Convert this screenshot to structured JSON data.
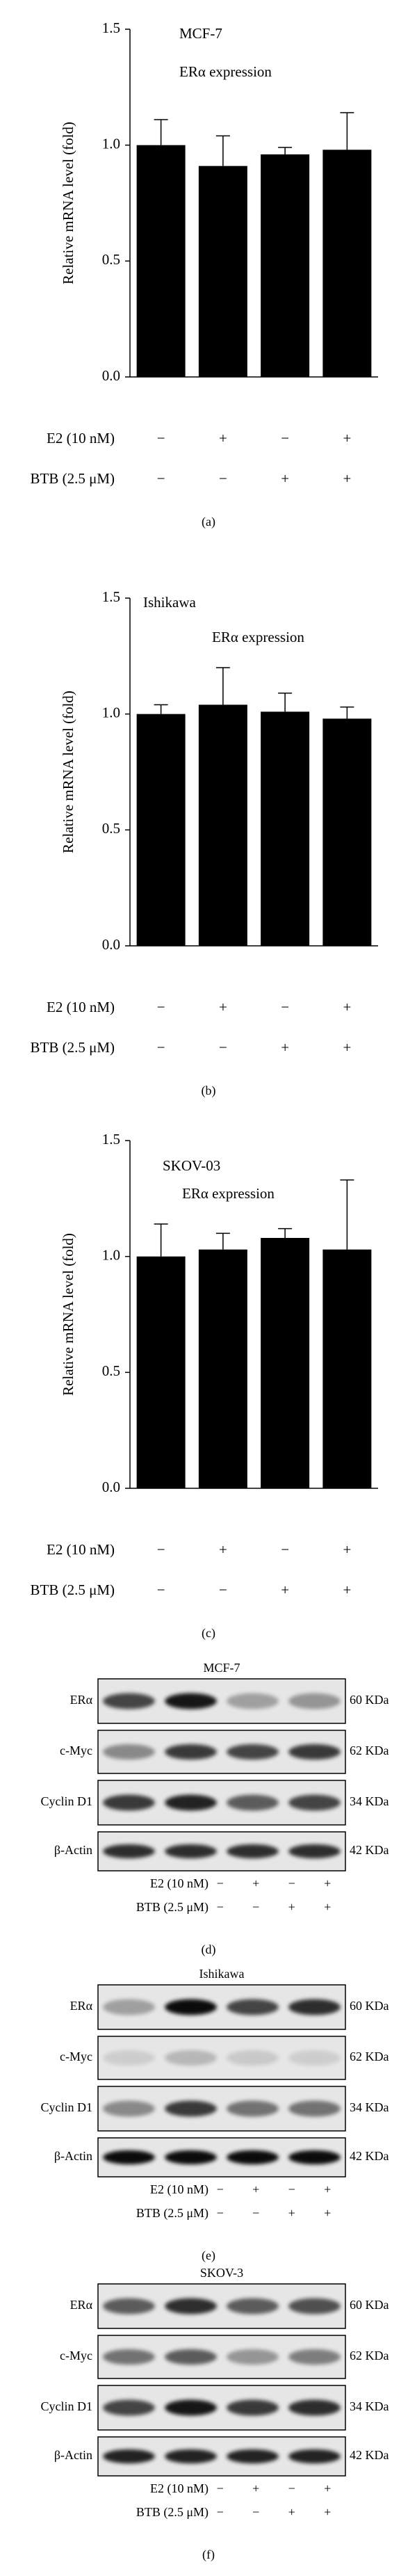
{
  "chart_data": [
    {
      "type": "bar",
      "title": "MCF-7",
      "subtitle": "ERα expression",
      "y_label": "Relative mRNA level (fold)",
      "series": [
        {
          "color": "#000000",
          "values": [
            1.0,
            0.91,
            0.96,
            0.98
          ],
          "errors": [
            0.11,
            0.13,
            0.03,
            0.16
          ]
        }
      ],
      "ylim": [
        0,
        1.5
      ],
      "yticks": [
        {
          "value": 0,
          "label": "0.0"
        },
        0.5,
        {
          "value": 1,
          "label": "1.0"
        },
        1.5
      ],
      "condition_table": [
        {
          "label": "E2 (10 nM)",
          "marks": [
            "−",
            "+",
            "−",
            "+"
          ]
        },
        {
          "label": "BTB (2.5 μM)",
          "marks": [
            "−",
            "−",
            "+",
            "+"
          ]
        }
      ],
      "panel_label": "(a)"
    },
    {
      "type": "bar",
      "title": "Ishikawa",
      "subtitle": "ERα expression",
      "y_label": "Relative mRNA level (fold)",
      "series": [
        {
          "color": "#000000",
          "values": [
            1.0,
            1.04,
            1.01,
            0.98
          ],
          "errors": [
            0.04,
            0.16,
            0.08,
            0.05
          ]
        }
      ],
      "ylim": [
        0,
        1.5
      ],
      "yticks": [
        {
          "value": 0,
          "label": "0.0"
        },
        0.5,
        {
          "value": 1,
          "label": "1.0"
        },
        1.5
      ],
      "condition_table": [
        {
          "label": "E2 (10 nM)",
          "marks": [
            "−",
            "+",
            "−",
            "+"
          ]
        },
        {
          "label": "BTB (2.5 μM)",
          "marks": [
            "−",
            "−",
            "+",
            "+"
          ]
        }
      ],
      "panel_label": "(b)"
    },
    {
      "type": "bar",
      "title": "SKOV-03",
      "subtitle": "ERα expression",
      "y_label": "Relative mRNA level (fold)",
      "series": [
        {
          "color": "#000000",
          "values": [
            1.0,
            1.03,
            1.08,
            1.03
          ],
          "errors": [
            0.14,
            0.07,
            0.04,
            0.3
          ]
        }
      ],
      "ylim": [
        0,
        1.5
      ],
      "yticks": [
        {
          "value": 0,
          "label": "0.0"
        },
        0.5,
        {
          "value": 1,
          "label": "1.0"
        },
        1.5
      ],
      "condition_table": [
        {
          "label": "E2 (10 nM)",
          "marks": [
            "−",
            "+",
            "−",
            "+"
          ]
        },
        {
          "label": "BTB (2.5 μM)",
          "marks": [
            "−",
            "−",
            "+",
            "+"
          ]
        }
      ],
      "panel_label": "(c)"
    }
  ],
  "blots": [
    {
      "title": "MCF-7",
      "rows": [
        {
          "label": "ERα",
          "size": "60 KDa"
        },
        {
          "label": "c-Myc",
          "size": "62 KDa"
        },
        {
          "label": "Cyclin D1",
          "size": "34 KDa"
        },
        {
          "label": "β-Actin",
          "size": "42 KDa"
        }
      ],
      "conditions": [
        {
          "label": "E2 (10 nM)",
          "marks": [
            "−",
            "+",
            "−",
            "+"
          ]
        },
        {
          "label": "BTB (2.5 μM)",
          "marks": [
            "−",
            "−",
            "+",
            "+"
          ]
        }
      ],
      "panel_label": "(d)"
    },
    {
      "title": "Ishikawa",
      "rows": [
        {
          "label": "ERα",
          "size": "60 KDa"
        },
        {
          "label": "c-Myc",
          "size": "62 KDa"
        },
        {
          "label": "Cyclin D1",
          "size": "34 KDa"
        },
        {
          "label": "β-Actin",
          "size": "42 KDa"
        }
      ],
      "conditions": [
        {
          "label": "E2 (10 nM)",
          "marks": [
            "−",
            "+",
            "−",
            "+"
          ]
        },
        {
          "label": "BTB (2.5 μM)",
          "marks": [
            "−",
            "−",
            "+",
            "+"
          ]
        }
      ],
      "panel_label": "(e)"
    },
    {
      "title": "SKOV-3",
      "rows": [
        {
          "label": "ERα",
          "size": "60 KDa"
        },
        {
          "label": "c-Myc",
          "size": "62 KDa"
        },
        {
          "label": "Cyclin D1",
          "size": "34 KDa"
        },
        {
          "label": "β-Actin",
          "size": "42 KDa"
        }
      ],
      "conditions": [
        {
          "label": "E2 (10 nM)",
          "marks": [
            "−",
            "+",
            "−",
            "+"
          ]
        },
        {
          "label": "BTB (2.5 μM)",
          "marks": [
            "−",
            "−",
            "+",
            "+"
          ]
        }
      ],
      "panel_label": "(f)"
    }
  ]
}
